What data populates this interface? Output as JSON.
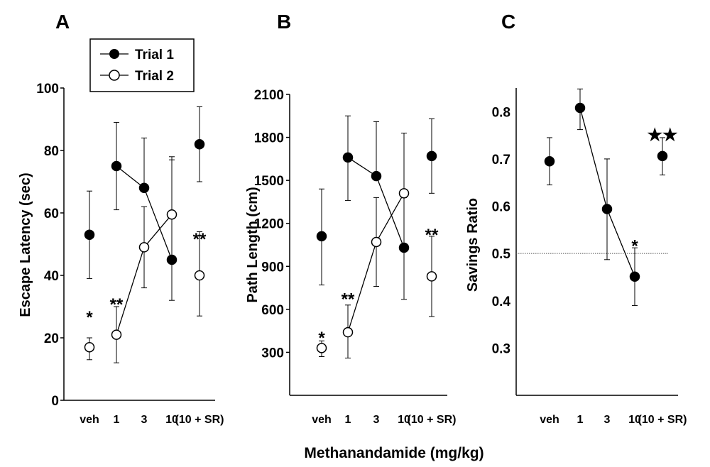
{
  "figure": {
    "xlabel": "Methanandamide (mg/kg)"
  },
  "legend": {
    "entries": [
      {
        "label": "Trial 1",
        "marker": "filled-circle"
      },
      {
        "label": "Trial 2",
        "marker": "open-circle"
      }
    ]
  },
  "chart_data": [
    {
      "panel": "A",
      "type": "line",
      "categories": [
        "veh",
        "1",
        "3",
        "10",
        "(10 + SR)"
      ],
      "ylabel": "Escape Latency (sec)",
      "ylim": [
        0,
        100
      ],
      "yticks": [
        0,
        20,
        40,
        60,
        80,
        100
      ],
      "series": [
        {
          "name": "Trial 1",
          "marker": "filled",
          "values": [
            53,
            75,
            68,
            45,
            82
          ],
          "err_low": [
            39,
            61,
            null,
            32,
            70
          ],
          "err_high": [
            67,
            89,
            84,
            78,
            94
          ],
          "connect": [
            1,
            2,
            3
          ]
        },
        {
          "name": "Trial 2",
          "marker": "open",
          "values": [
            17,
            21,
            49,
            59.5,
            40
          ],
          "err_low": [
            13,
            12,
            36,
            null,
            27
          ],
          "err_high": [
            20,
            30,
            62,
            77,
            54
          ],
          "connect": [
            1,
            2,
            3
          ]
        }
      ],
      "annotations": [
        {
          "category": "veh",
          "text": "*",
          "value": 28
        },
        {
          "category": "1",
          "text": "**",
          "value": 32
        },
        {
          "category": "(10 + SR)",
          "text": "**",
          "value": 53
        }
      ]
    },
    {
      "panel": "B",
      "type": "line",
      "categories": [
        "veh",
        "1",
        "3",
        "10",
        "(10 + SR)"
      ],
      "ylabel": "Path Length (cm)",
      "ylim": [
        0,
        2100
      ],
      "yticks": [
        300,
        600,
        900,
        1200,
        1500,
        1800,
        2100
      ],
      "series": [
        {
          "name": "Trial 1",
          "marker": "filled",
          "values": [
            1110,
            1660,
            1530,
            1030,
            1670
          ],
          "err_low": [
            770,
            1360,
            null,
            670,
            1410
          ],
          "err_high": [
            1440,
            1950,
            1910,
            1380,
            1930
          ],
          "connect": [
            1,
            2,
            3
          ]
        },
        {
          "name": "Trial 2",
          "marker": "open",
          "values": [
            330,
            440,
            1070,
            1410,
            830
          ],
          "err_low": [
            270,
            260,
            760,
            null,
            550
          ],
          "err_high": [
            380,
            630,
            1380,
            1830,
            1110
          ],
          "connect": [
            1,
            2,
            3
          ]
        }
      ],
      "annotations": [
        {
          "category": "veh",
          "text": "*",
          "value": 430
        },
        {
          "category": "1",
          "text": "**",
          "value": 700
        },
        {
          "category": "(10 + SR)",
          "text": "**",
          "value": 1150
        }
      ]
    },
    {
      "panel": "C",
      "type": "line",
      "categories": [
        "veh",
        "1",
        "3",
        "10",
        "(10 + SR)"
      ],
      "ylabel": "Savings Ratio",
      "ylim": [
        0.2,
        0.85
      ],
      "yticks": [
        0.3,
        0.4,
        0.5,
        0.6,
        0.7,
        0.8
      ],
      "reference_line": 0.5,
      "series": [
        {
          "name": "Trial 1",
          "marker": "filled",
          "values": [
            0.695,
            0.808,
            0.594,
            0.451,
            0.706
          ],
          "err_low": [
            0.645,
            0.762,
            0.487,
            0.39,
            0.666
          ],
          "err_high": [
            0.745,
            0.848,
            0.7,
            0.512,
            0.745
          ],
          "connect": [
            1,
            2,
            3
          ]
        }
      ],
      "annotations": [
        {
          "category": "10",
          "text": "*",
          "value": 0.525
        },
        {
          "category": "(10 + SR)",
          "text": "★★",
          "value": 0.76
        }
      ]
    }
  ]
}
